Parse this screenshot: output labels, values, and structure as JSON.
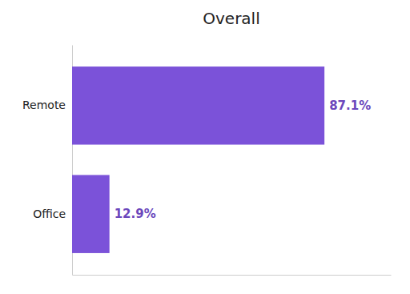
{
  "chart_data": {
    "type": "bar",
    "title": "Overall",
    "orientation": "horizontal",
    "categories": [
      "Remote",
      "Office"
    ],
    "values": [
      87.1,
      12.9
    ],
    "value_labels": [
      "87.1%",
      "12.9%"
    ],
    "data_labels": true,
    "color": "#7B52D9",
    "xlim": [
      0,
      110
    ],
    "tick_labels": "y"
  }
}
